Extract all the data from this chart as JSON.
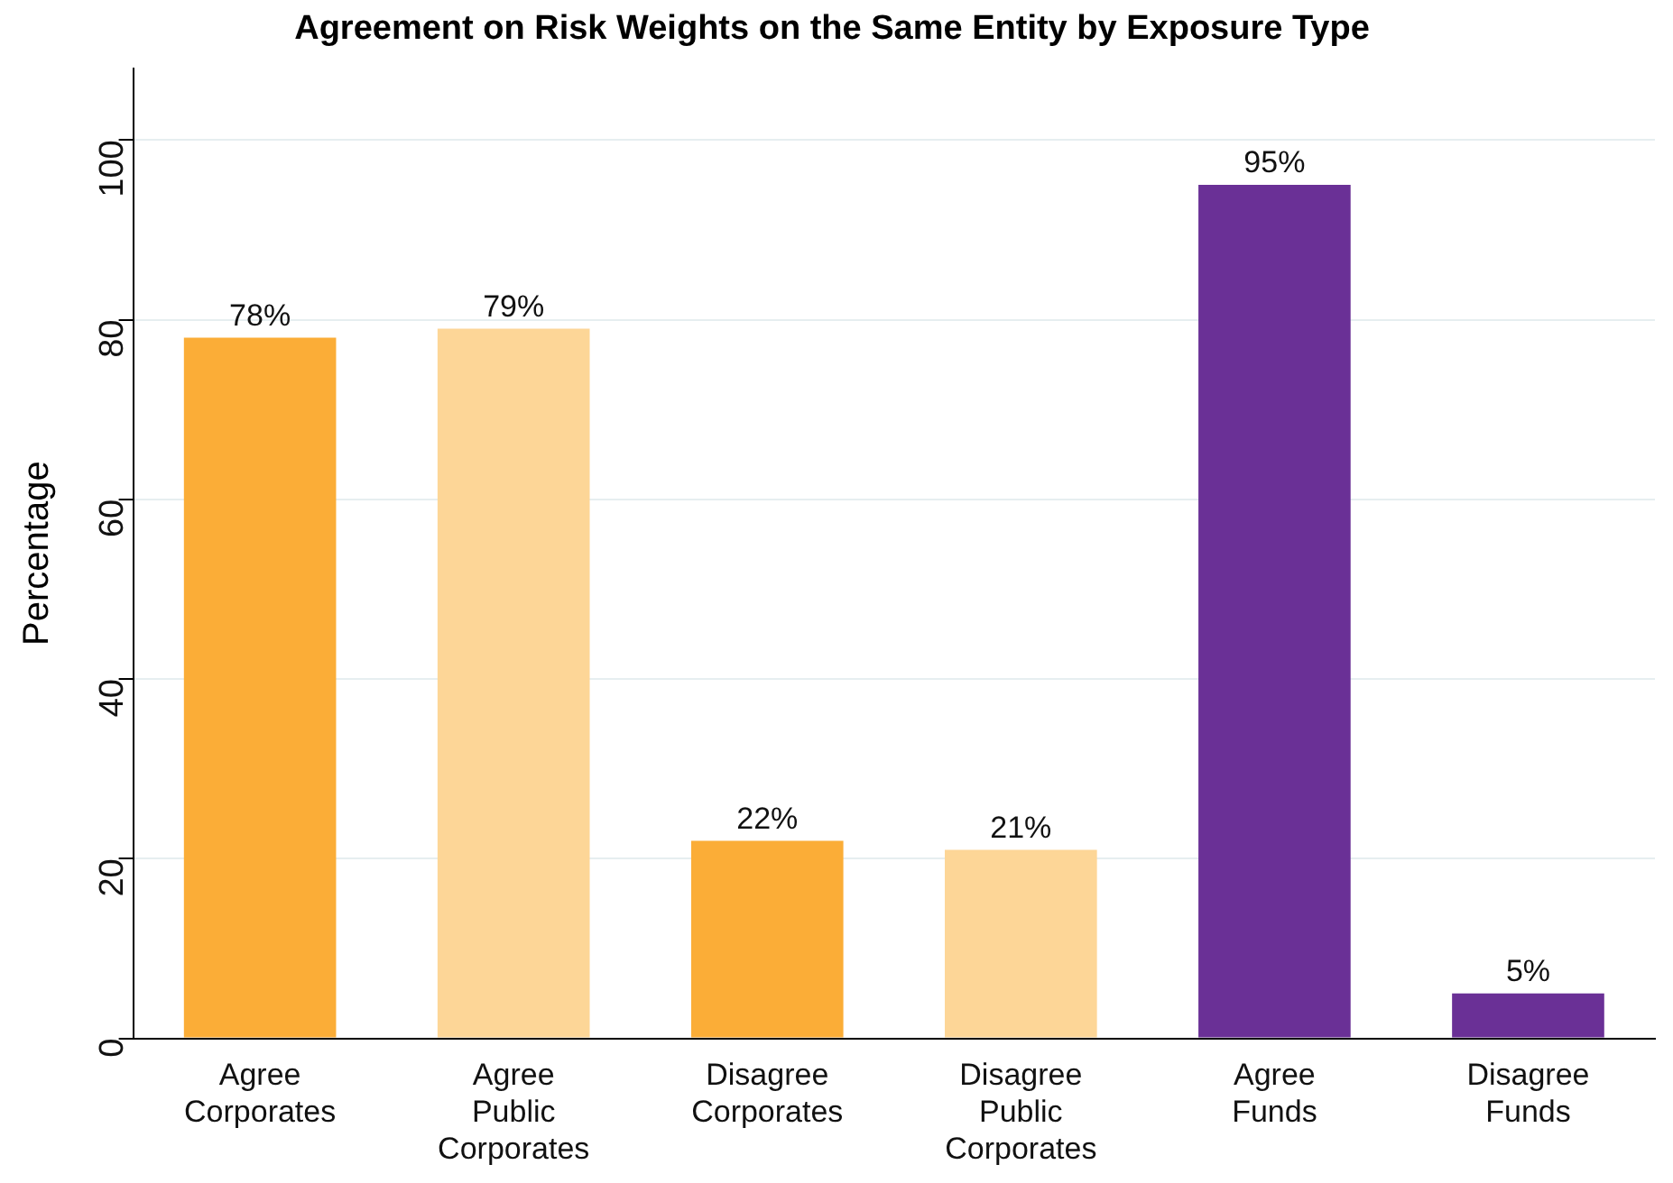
{
  "chart_data": {
    "type": "bar",
    "title": "Agreement on Risk Weights on the Same Entity by Exposure Type",
    "ylabel": "Percentage",
    "categories": [
      "Agree Corporates",
      "Agree Public Corporates",
      "Disagree Corporates",
      "Disagree Public Corporates",
      "Agree Funds",
      "Disagree Funds"
    ],
    "values": [
      78,
      79,
      22,
      21,
      95,
      5
    ],
    "colors": [
      "#fbad37",
      "#fdd697",
      "#fbad37",
      "#fdd697",
      "#6a3096",
      "#6a3096"
    ],
    "value_labels": [
      "78%",
      "79%",
      "22%",
      "21%",
      "95%",
      "5%"
    ],
    "ylim": [
      0,
      108
    ],
    "yticks": [
      0,
      20,
      40,
      60,
      80,
      100
    ],
    "grid": "y"
  }
}
